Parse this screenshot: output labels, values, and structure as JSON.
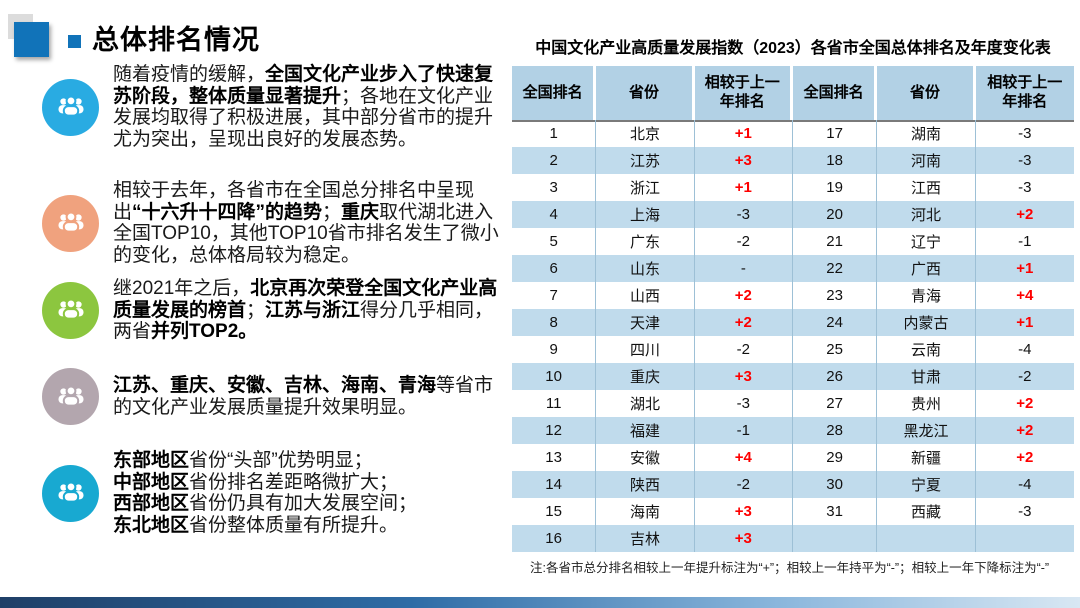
{
  "page_title": "总体排名情况",
  "bullets": [
    {
      "color": "#29abe2",
      "icon": "people-group-icon",
      "segments": [
        {
          "t": "随着疫情的缓解，",
          "b": false
        },
        {
          "t": "全国文化产业步入了快速复苏阶段，整体质量显著提升",
          "b": true
        },
        {
          "t": "；各地在文化产业发展均取得了积极进展，其中部分省市的提升尤为突出，呈现出良好的发展态势。",
          "b": false
        }
      ]
    },
    {
      "color": "#f0a27e",
      "icon": "people-group-icon",
      "segments": [
        {
          "t": "相较于去年，各省市在全国总分排名中呈现出",
          "b": false
        },
        {
          "t": "“十六升十四降”的趋势",
          "b": true
        },
        {
          "t": "；",
          "b": false
        },
        {
          "t": "重庆",
          "b": true
        },
        {
          "t": "取代湖北进入全国TOP10，其他TOP10省市排名发生了微小的变化，总体格局较为稳定。",
          "b": false
        }
      ]
    },
    {
      "color": "#8cc63f",
      "icon": "people-group-icon",
      "segments": [
        {
          "t": "继2021年之后，",
          "b": false
        },
        {
          "t": "北京再次荣登全国文化产业高质量发展的榜首",
          "b": true
        },
        {
          "t": "；",
          "b": false
        },
        {
          "t": "江苏与浙江",
          "b": true
        },
        {
          "t": "得分几乎相同，两省",
          "b": false
        },
        {
          "t": "并列TOP2。",
          "b": true
        }
      ]
    },
    {
      "color": "#b3a6ae",
      "icon": "people-group-icon",
      "segments": [
        {
          "t": "江苏、重庆、安徽、吉林、海南、青海",
          "b": true
        },
        {
          "t": "等省市的文化产业发展质量提升效果明显。",
          "b": false
        }
      ]
    },
    {
      "color": "#18a9d1",
      "icon": "people-group-icon",
      "segments": [
        {
          "t": "东部地区",
          "b": true
        },
        {
          "t": "省份“头部”优势明显；",
          "b": false,
          "br": true
        },
        {
          "t": "中部地区",
          "b": true
        },
        {
          "t": "省份排名差距略微扩大；",
          "b": false,
          "br": true
        },
        {
          "t": "西部地区",
          "b": true
        },
        {
          "t": "省份仍具有加大发展空间；",
          "b": false,
          "br": true
        },
        {
          "t": "东北地区",
          "b": true
        },
        {
          "t": "省份整体质量有所提升。",
          "b": false
        }
      ]
    }
  ],
  "table": {
    "title": "中国文化产业高质量发展指数（2023）各省市全国总体排名及年度变化表",
    "headers": [
      "全国排名",
      "省份",
      "相较于上一年排名",
      "全国排名",
      "省份",
      "相较于上一年排名"
    ],
    "rows_left": [
      {
        "rank": "1",
        "province": "北京",
        "change": "+1"
      },
      {
        "rank": "2",
        "province": "江苏",
        "change": "+3"
      },
      {
        "rank": "3",
        "province": "浙江",
        "change": "+1"
      },
      {
        "rank": "4",
        "province": "上海",
        "change": "-3"
      },
      {
        "rank": "5",
        "province": "广东",
        "change": "-2"
      },
      {
        "rank": "6",
        "province": "山东",
        "change": "-"
      },
      {
        "rank": "7",
        "province": "山西",
        "change": "+2"
      },
      {
        "rank": "8",
        "province": "天津",
        "change": "+2"
      },
      {
        "rank": "9",
        "province": "四川",
        "change": "-2"
      },
      {
        "rank": "10",
        "province": "重庆",
        "change": "+3"
      },
      {
        "rank": "11",
        "province": "湖北",
        "change": "-3"
      },
      {
        "rank": "12",
        "province": "福建",
        "change": "-1"
      },
      {
        "rank": "13",
        "province": "安徽",
        "change": "+4"
      },
      {
        "rank": "14",
        "province": "陕西",
        "change": "-2"
      },
      {
        "rank": "15",
        "province": "海南",
        "change": "+3"
      },
      {
        "rank": "16",
        "province": "吉林",
        "change": "+3"
      }
    ],
    "rows_right": [
      {
        "rank": "17",
        "province": "湖南",
        "change": "-3"
      },
      {
        "rank": "18",
        "province": "河南",
        "change": "-3"
      },
      {
        "rank": "19",
        "province": "江西",
        "change": "-3"
      },
      {
        "rank": "20",
        "province": "河北",
        "change": "+2"
      },
      {
        "rank": "21",
        "province": "辽宁",
        "change": "-1"
      },
      {
        "rank": "22",
        "province": "广西",
        "change": "+1"
      },
      {
        "rank": "23",
        "province": "青海",
        "change": "+4"
      },
      {
        "rank": "24",
        "province": "内蒙古",
        "change": "+1"
      },
      {
        "rank": "25",
        "province": "云南",
        "change": "-4"
      },
      {
        "rank": "26",
        "province": "甘肃",
        "change": "-2"
      },
      {
        "rank": "27",
        "province": "贵州",
        "change": "+2"
      },
      {
        "rank": "28",
        "province": "黑龙江",
        "change": "+2"
      },
      {
        "rank": "29",
        "province": "新疆",
        "change": "+2"
      },
      {
        "rank": "30",
        "province": "宁夏",
        "change": "-4"
      },
      {
        "rank": "31",
        "province": "西藏",
        "change": "-3"
      },
      {
        "rank": "",
        "province": "",
        "change": ""
      }
    ],
    "note": "注:各省市总分排名相较上一年提升标注为“+”；相较上一年持平为“-”；相较上一年下降标注为“-”"
  },
  "colors": {
    "accent_blue": "#1173b9",
    "header_bg": "#b2d1e5",
    "row_alt_bg": "#c0dbec",
    "positive_red": "#fe0000",
    "bar_gradient_start": "#1f3f67",
    "bar_gradient_end": "#d8e7f3"
  }
}
